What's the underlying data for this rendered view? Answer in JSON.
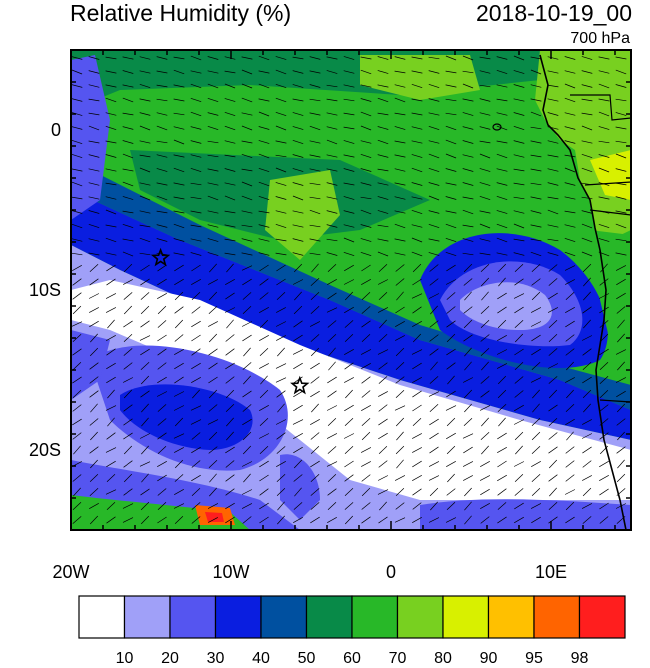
{
  "header": {
    "title": "Relative Humidity (%)",
    "datetime": "2018-10-19_00",
    "level": "700 hPa"
  },
  "map": {
    "lon_range": [
      -20,
      15
    ],
    "lat_range": [
      -25,
      5
    ],
    "lat_ticks": [
      {
        "lat": 0,
        "label": "0"
      },
      {
        "lat": -10,
        "label": "10S"
      },
      {
        "lat": -20,
        "label": "20S"
      }
    ],
    "lon_ticks": [
      {
        "lon": -20,
        "label": "20W"
      },
      {
        "lon": -10,
        "label": "10W"
      },
      {
        "lon": 0,
        "label": "0"
      },
      {
        "lon": 10,
        "label": "10E"
      }
    ],
    "stations": [
      {
        "lon": -14.4,
        "lat": -8.0
      },
      {
        "lon": -5.7,
        "lat": -16.0
      }
    ]
  },
  "colorbar": {
    "levels": [
      "10",
      "20",
      "30",
      "40",
      "50",
      "60",
      "70",
      "80",
      "90",
      "95",
      "98"
    ],
    "colors": [
      "#ffffff",
      "#a0a0f8",
      "#5555f0",
      "#0a1ee0",
      "#0050a0",
      "#088a48",
      "#28b828",
      "#78d020",
      "#d8f000",
      "#ffc000",
      "#ff6400",
      "#ff1e1e"
    ]
  }
}
